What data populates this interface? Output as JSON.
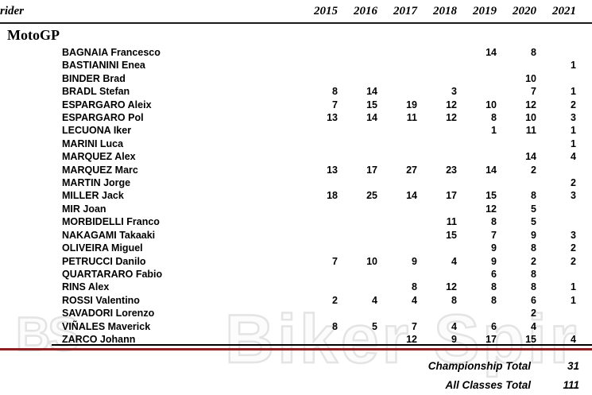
{
  "header": {
    "rider_label": "rider",
    "years": [
      "2015",
      "2016",
      "2017",
      "2018",
      "2019",
      "2020",
      "2021"
    ]
  },
  "section": {
    "title": "MotoGP"
  },
  "table": {
    "rows": [
      {
        "rider": "BAGNAIA Francesco",
        "values": [
          "",
          "",
          "",
          "",
          "14",
          "8",
          ""
        ]
      },
      {
        "rider": "BASTIANINI Enea",
        "values": [
          "",
          "",
          "",
          "",
          "",
          "",
          "1"
        ]
      },
      {
        "rider": "BINDER Brad",
        "values": [
          "",
          "",
          "",
          "",
          "",
          "10",
          ""
        ]
      },
      {
        "rider": "BRADL Stefan",
        "values": [
          "8",
          "14",
          "",
          "3",
          "",
          "7",
          "1"
        ]
      },
      {
        "rider": "ESPARGARO Aleix",
        "values": [
          "7",
          "15",
          "19",
          "12",
          "10",
          "12",
          "2"
        ]
      },
      {
        "rider": "ESPARGARO Pol",
        "values": [
          "13",
          "14",
          "11",
          "12",
          "8",
          "10",
          "3"
        ]
      },
      {
        "rider": "LECUONA Iker",
        "values": [
          "",
          "",
          "",
          "",
          "1",
          "11",
          "1"
        ]
      },
      {
        "rider": "MARINI Luca",
        "values": [
          "",
          "",
          "",
          "",
          "",
          "",
          "1"
        ]
      },
      {
        "rider": "MARQUEZ Alex",
        "values": [
          "",
          "",
          "",
          "",
          "",
          "14",
          "4"
        ]
      },
      {
        "rider": "MARQUEZ Marc",
        "values": [
          "13",
          "17",
          "27",
          "23",
          "14",
          "2",
          ""
        ]
      },
      {
        "rider": "MARTIN Jorge",
        "values": [
          "",
          "",
          "",
          "",
          "",
          "",
          "2"
        ]
      },
      {
        "rider": "MILLER Jack",
        "values": [
          "18",
          "25",
          "14",
          "17",
          "15",
          "8",
          "3"
        ]
      },
      {
        "rider": "MIR Joan",
        "values": [
          "",
          "",
          "",
          "",
          "12",
          "5",
          ""
        ]
      },
      {
        "rider": "MORBIDELLI Franco",
        "values": [
          "",
          "",
          "",
          "11",
          "8",
          "5",
          ""
        ]
      },
      {
        "rider": "NAKAGAMI Takaaki",
        "values": [
          "",
          "",
          "",
          "15",
          "7",
          "9",
          "3"
        ]
      },
      {
        "rider": "OLIVEIRA Miguel",
        "values": [
          "",
          "",
          "",
          "",
          "9",
          "8",
          "2"
        ]
      },
      {
        "rider": "PETRUCCI Danilo",
        "values": [
          "7",
          "10",
          "9",
          "4",
          "9",
          "2",
          "2"
        ]
      },
      {
        "rider": "QUARTARARO Fabio",
        "values": [
          "",
          "",
          "",
          "",
          "6",
          "8",
          ""
        ]
      },
      {
        "rider": "RINS Alex",
        "values": [
          "",
          "",
          "8",
          "12",
          "8",
          "8",
          "1"
        ]
      },
      {
        "rider": "ROSSI Valentino",
        "values": [
          "2",
          "4",
          "4",
          "8",
          "8",
          "6",
          "1"
        ]
      },
      {
        "rider": "SAVADORI Lorenzo",
        "values": [
          "",
          "",
          "",
          "",
          "",
          "2",
          ""
        ]
      },
      {
        "rider": "VIÑALES Maverick",
        "values": [
          "8",
          "5",
          "7",
          "4",
          "6",
          "4",
          ""
        ]
      },
      {
        "rider": "ZARCO Johann",
        "values": [
          "",
          "",
          "12",
          "9",
          "17",
          "15",
          "4"
        ]
      }
    ]
  },
  "totals": {
    "championship_label": "Championship Total",
    "championship_value": "31",
    "all_classes_label": "All Classes Total",
    "all_classes_value": "111"
  },
  "watermark": {
    "left_text": "BS",
    "main_text": "Biker Spir"
  },
  "colors": {
    "divider_red": "#8e2020",
    "header_rule": "#1a1a1a",
    "watermark_gray": "#e4e4e4"
  }
}
